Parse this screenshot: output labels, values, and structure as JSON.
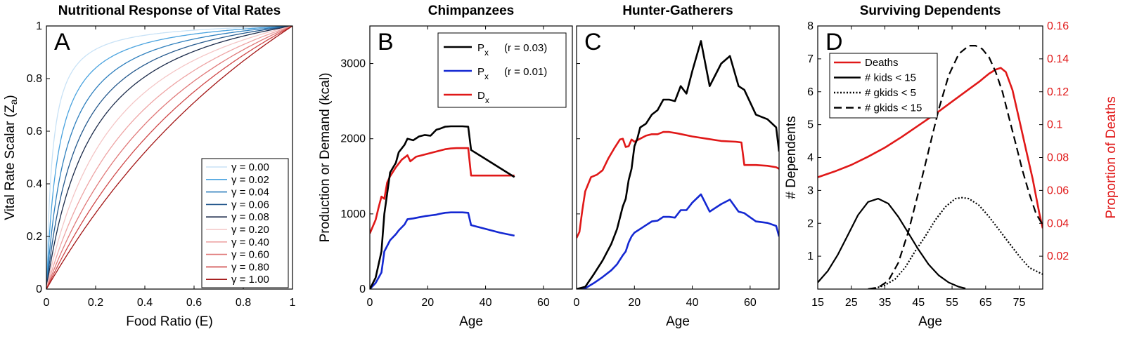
{
  "chart_data": [
    {
      "panel": "A",
      "type": "line",
      "title": "Nutritional Response of Vital Rates",
      "xlabel": "Food Ratio (E)",
      "ylabel": "Vital Rate Scalar (Z",
      "ylabel_sub": "a",
      "ylabel_end": ")",
      "xlim": [
        0,
        1
      ],
      "ylim": [
        0,
        1
      ],
      "xticks": [
        0,
        0.2,
        0.4,
        0.6,
        0.8,
        1
      ],
      "xtick_labels": [
        "0",
        "0.2",
        "0.4",
        "0.6",
        "0.8",
        "1"
      ],
      "yticks": [
        0,
        0.2,
        0.4,
        0.6,
        0.8,
        1
      ],
      "ytick_labels": [
        "0",
        "0.2",
        "0.4",
        "0.6",
        "0.8",
        "1"
      ],
      "legend_position": "bottom-right",
      "legend_symbol": "γ",
      "series": [
        {
          "name": "γ = 0.00",
          "gamma": 0.0,
          "k": 0.025,
          "family": "blue",
          "color": "#c8e2f6"
        },
        {
          "name": "γ = 0.02",
          "gamma": 0.02,
          "k": 0.05,
          "family": "blue",
          "color": "#4aa3df"
        },
        {
          "name": "γ = 0.04",
          "gamma": 0.04,
          "k": 0.085,
          "family": "blue",
          "color": "#2e7fbd"
        },
        {
          "name": "γ = 0.06",
          "gamma": 0.06,
          "k": 0.13,
          "family": "blue",
          "color": "#24588c"
        },
        {
          "name": "γ = 0.08",
          "gamma": 0.08,
          "k": 0.19,
          "family": "blue",
          "color": "#1c2b4a"
        },
        {
          "name": "γ = 0.20",
          "gamma": 0.2,
          "k": 0.29,
          "family": "red",
          "color": "#f4c6c6"
        },
        {
          "name": "γ = 0.40",
          "gamma": 0.4,
          "k": 0.44,
          "family": "red",
          "color": "#eea4a4"
        },
        {
          "name": "γ = 0.60",
          "gamma": 0.6,
          "k": 0.66,
          "family": "red",
          "color": "#e07878"
        },
        {
          "name": "γ = 0.80",
          "gamma": 0.8,
          "k": 1.0,
          "family": "red",
          "color": "#cf4848"
        },
        {
          "name": "γ = 1.00",
          "gamma": 1.0,
          "k": 1.6,
          "family": "red",
          "color": "#a21414"
        }
      ]
    },
    {
      "panel": "B",
      "type": "line",
      "title": "Chimpanzees",
      "xlabel": "Age",
      "ylabel": "Production or Demand (kcal)",
      "xlim": [
        0,
        70
      ],
      "ylim": [
        0,
        3500
      ],
      "xticks": [
        0,
        20,
        40,
        60
      ],
      "yticks": [
        0,
        1000,
        2000,
        3000
      ],
      "legend_position": "top-right",
      "series": [
        {
          "name": "P",
          "sub": "x",
          "extra": "(r = 0.03)",
          "color": "#000000",
          "x": [
            0,
            2,
            4,
            5,
            7,
            9,
            10,
            12,
            13,
            15,
            17,
            19,
            21,
            23,
            24,
            26,
            28,
            30,
            32,
            34,
            35,
            40,
            45,
            50
          ],
          "y": [
            0,
            150,
            500,
            1000,
            1550,
            1680,
            1820,
            1920,
            2000,
            1980,
            2030,
            2050,
            2040,
            2120,
            2130,
            2160,
            2165,
            2165,
            2165,
            2160,
            1850,
            1730,
            1610,
            1490
          ]
        },
        {
          "name": "P",
          "sub": "x",
          "extra": "(r = 0.01)",
          "color": "#1428d2",
          "x": [
            0,
            2,
            4,
            5,
            7,
            9,
            10,
            12,
            13,
            15,
            17,
            19,
            21,
            23,
            24,
            26,
            28,
            30,
            32,
            34,
            35,
            40,
            45,
            50
          ],
          "y": [
            0,
            80,
            220,
            500,
            650,
            730,
            780,
            860,
            930,
            940,
            955,
            970,
            980,
            990,
            1000,
            1015,
            1020,
            1020,
            1020,
            1015,
            850,
            800,
            750,
            710
          ]
        },
        {
          "name": "D",
          "sub": "x",
          "extra": "",
          "color": "#e01818",
          "x": [
            0,
            2,
            3,
            4,
            5,
            6,
            7,
            9,
            11,
            13,
            14,
            16,
            18,
            20,
            22,
            24,
            26,
            28,
            30,
            32,
            34,
            35,
            40,
            45,
            50
          ],
          "y": [
            740,
            920,
            1080,
            1230,
            1200,
            1420,
            1500,
            1620,
            1720,
            1780,
            1700,
            1760,
            1780,
            1800,
            1820,
            1840,
            1860,
            1870,
            1875,
            1875,
            1875,
            1510,
            1510,
            1510,
            1510
          ]
        }
      ]
    },
    {
      "panel": "C",
      "type": "line",
      "title": "Hunter-Gatherers",
      "xlabel": "Age",
      "ylabel": "",
      "xlim": [
        0,
        70
      ],
      "ylim": [
        0,
        3500
      ],
      "xticks": [
        0,
        20,
        40,
        60
      ],
      "yticks": [
        0,
        1000,
        2000,
        3000
      ],
      "series": [
        {
          "name": "P",
          "sub": "x",
          "extra": "(r = 0.03)",
          "color": "#000000",
          "x": [
            0,
            3,
            6,
            9,
            12,
            14,
            16,
            17,
            18,
            19,
            20,
            21,
            22,
            24,
            26,
            28,
            30,
            32,
            34,
            36,
            38,
            40,
            43,
            46,
            50,
            53,
            56,
            58,
            62,
            66,
            69,
            70
          ],
          "y": [
            0,
            30,
            200,
            380,
            600,
            800,
            1100,
            1200,
            1450,
            1600,
            1900,
            2000,
            2150,
            2200,
            2320,
            2380,
            2520,
            2520,
            2500,
            2700,
            2600,
            2900,
            3300,
            2700,
            3000,
            3100,
            2700,
            2650,
            2320,
            2260,
            2150,
            1830
          ]
        },
        {
          "name": "P",
          "sub": "x",
          "extra": "(r = 0.01)",
          "color": "#1428d2",
          "x": [
            0,
            3,
            6,
            9,
            12,
            14,
            16,
            17,
            18,
            19,
            20,
            22,
            24,
            26,
            28,
            30,
            32,
            34,
            36,
            38,
            40,
            43,
            46,
            50,
            53,
            56,
            58,
            62,
            66,
            69,
            70
          ],
          "y": [
            0,
            10,
            80,
            160,
            250,
            330,
            450,
            500,
            620,
            700,
            750,
            800,
            850,
            900,
            910,
            960,
            960,
            950,
            1050,
            1050,
            1150,
            1260,
            1030,
            1130,
            1190,
            1030,
            1010,
            900,
            880,
            840,
            700
          ]
        },
        {
          "name": "D",
          "sub": "x",
          "extra": "",
          "color": "#e01818",
          "x": [
            0,
            1,
            2,
            3,
            5,
            7,
            9,
            11,
            13,
            15,
            16,
            17,
            18,
            19,
            20,
            22,
            24,
            26,
            28,
            30,
            32,
            35,
            40,
            45,
            50,
            55,
            57,
            58,
            62,
            66,
            69,
            70
          ],
          "y": [
            680,
            760,
            1050,
            1300,
            1490,
            1520,
            1580,
            1740,
            1870,
            1990,
            2000,
            1890,
            1900,
            1990,
            1960,
            2000,
            2040,
            2060,
            2060,
            2090,
            2090,
            2070,
            2030,
            2000,
            1970,
            1960,
            1950,
            1650,
            1650,
            1640,
            1620,
            1600
          ]
        }
      ]
    },
    {
      "panel": "D",
      "type": "line",
      "title": "Surviving Dependents",
      "xlabel": "Age",
      "ylabel": "# Dependents",
      "ylabel_right": "Proportion of Deaths",
      "xlim": [
        15,
        82
      ],
      "ylim": [
        0,
        8
      ],
      "ylim_right": [
        0,
        0.16
      ],
      "xticks": [
        15,
        25,
        35,
        45,
        55,
        65,
        75
      ],
      "yticks": [
        1,
        2,
        3,
        4,
        5,
        6,
        7,
        8
      ],
      "yticks_right": [
        0.02,
        0.04,
        0.06,
        0.08,
        0.1,
        0.12,
        0.14,
        0.16
      ],
      "ytick_labels_right": [
        "0.02",
        "0.04",
        "0.06",
        "0.08",
        "0.1",
        "0.12",
        "0.14",
        "0.16"
      ],
      "legend_position": "top-left",
      "series": [
        {
          "name": "Deaths",
          "axis": "right",
          "color": "#e01818",
          "dash": "solid",
          "x": [
            15,
            20,
            25,
            30,
            35,
            40,
            45,
            50,
            55,
            60,
            63,
            66,
            68,
            69.5,
            71,
            73,
            75,
            77,
            79,
            81,
            82
          ],
          "y": [
            0.068,
            0.0715,
            0.0755,
            0.0805,
            0.086,
            0.0925,
            0.0995,
            0.1065,
            0.114,
            0.1215,
            0.126,
            0.131,
            0.1335,
            0.1345,
            0.132,
            0.121,
            0.103,
            0.085,
            0.067,
            0.046,
            0.037
          ]
        },
        {
          "name": "# kids < 15",
          "axis": "left",
          "color": "#000000",
          "dash": "solid",
          "x": [
            15,
            18,
            21,
            24,
            27,
            30,
            33,
            36,
            39,
            42,
            45,
            48,
            51,
            54,
            57,
            59
          ],
          "y": [
            0.2,
            0.55,
            1.05,
            1.65,
            2.25,
            2.65,
            2.75,
            2.6,
            2.2,
            1.7,
            1.2,
            0.75,
            0.42,
            0.2,
            0.07,
            0.02
          ]
        },
        {
          "name": "# gkids < 5",
          "axis": "left",
          "color": "#000000",
          "dash": "dotted",
          "x": [
            32,
            35,
            38,
            41,
            44,
            47,
            50,
            53,
            56,
            58,
            60,
            63,
            66,
            69,
            72,
            75,
            78,
            82
          ],
          "y": [
            0.02,
            0.12,
            0.3,
            0.65,
            1.15,
            1.6,
            2.1,
            2.5,
            2.75,
            2.78,
            2.75,
            2.55,
            2.2,
            1.8,
            1.4,
            1.0,
            0.65,
            0.45
          ]
        },
        {
          "name": "# gkids < 15",
          "axis": "left",
          "color": "#000000",
          "dash": "dashed",
          "x": [
            30,
            33,
            36,
            39,
            42,
            45,
            48,
            51,
            54,
            57,
            60,
            62,
            64,
            66,
            68,
            70,
            72,
            74,
            76,
            78,
            80,
            82
          ],
          "y": [
            0.0,
            0.05,
            0.25,
            0.8,
            1.75,
            2.95,
            4.2,
            5.45,
            6.5,
            7.15,
            7.4,
            7.4,
            7.3,
            7.05,
            6.6,
            6.0,
            5.2,
            4.4,
            3.6,
            2.9,
            2.3,
            1.95
          ]
        }
      ]
    }
  ]
}
